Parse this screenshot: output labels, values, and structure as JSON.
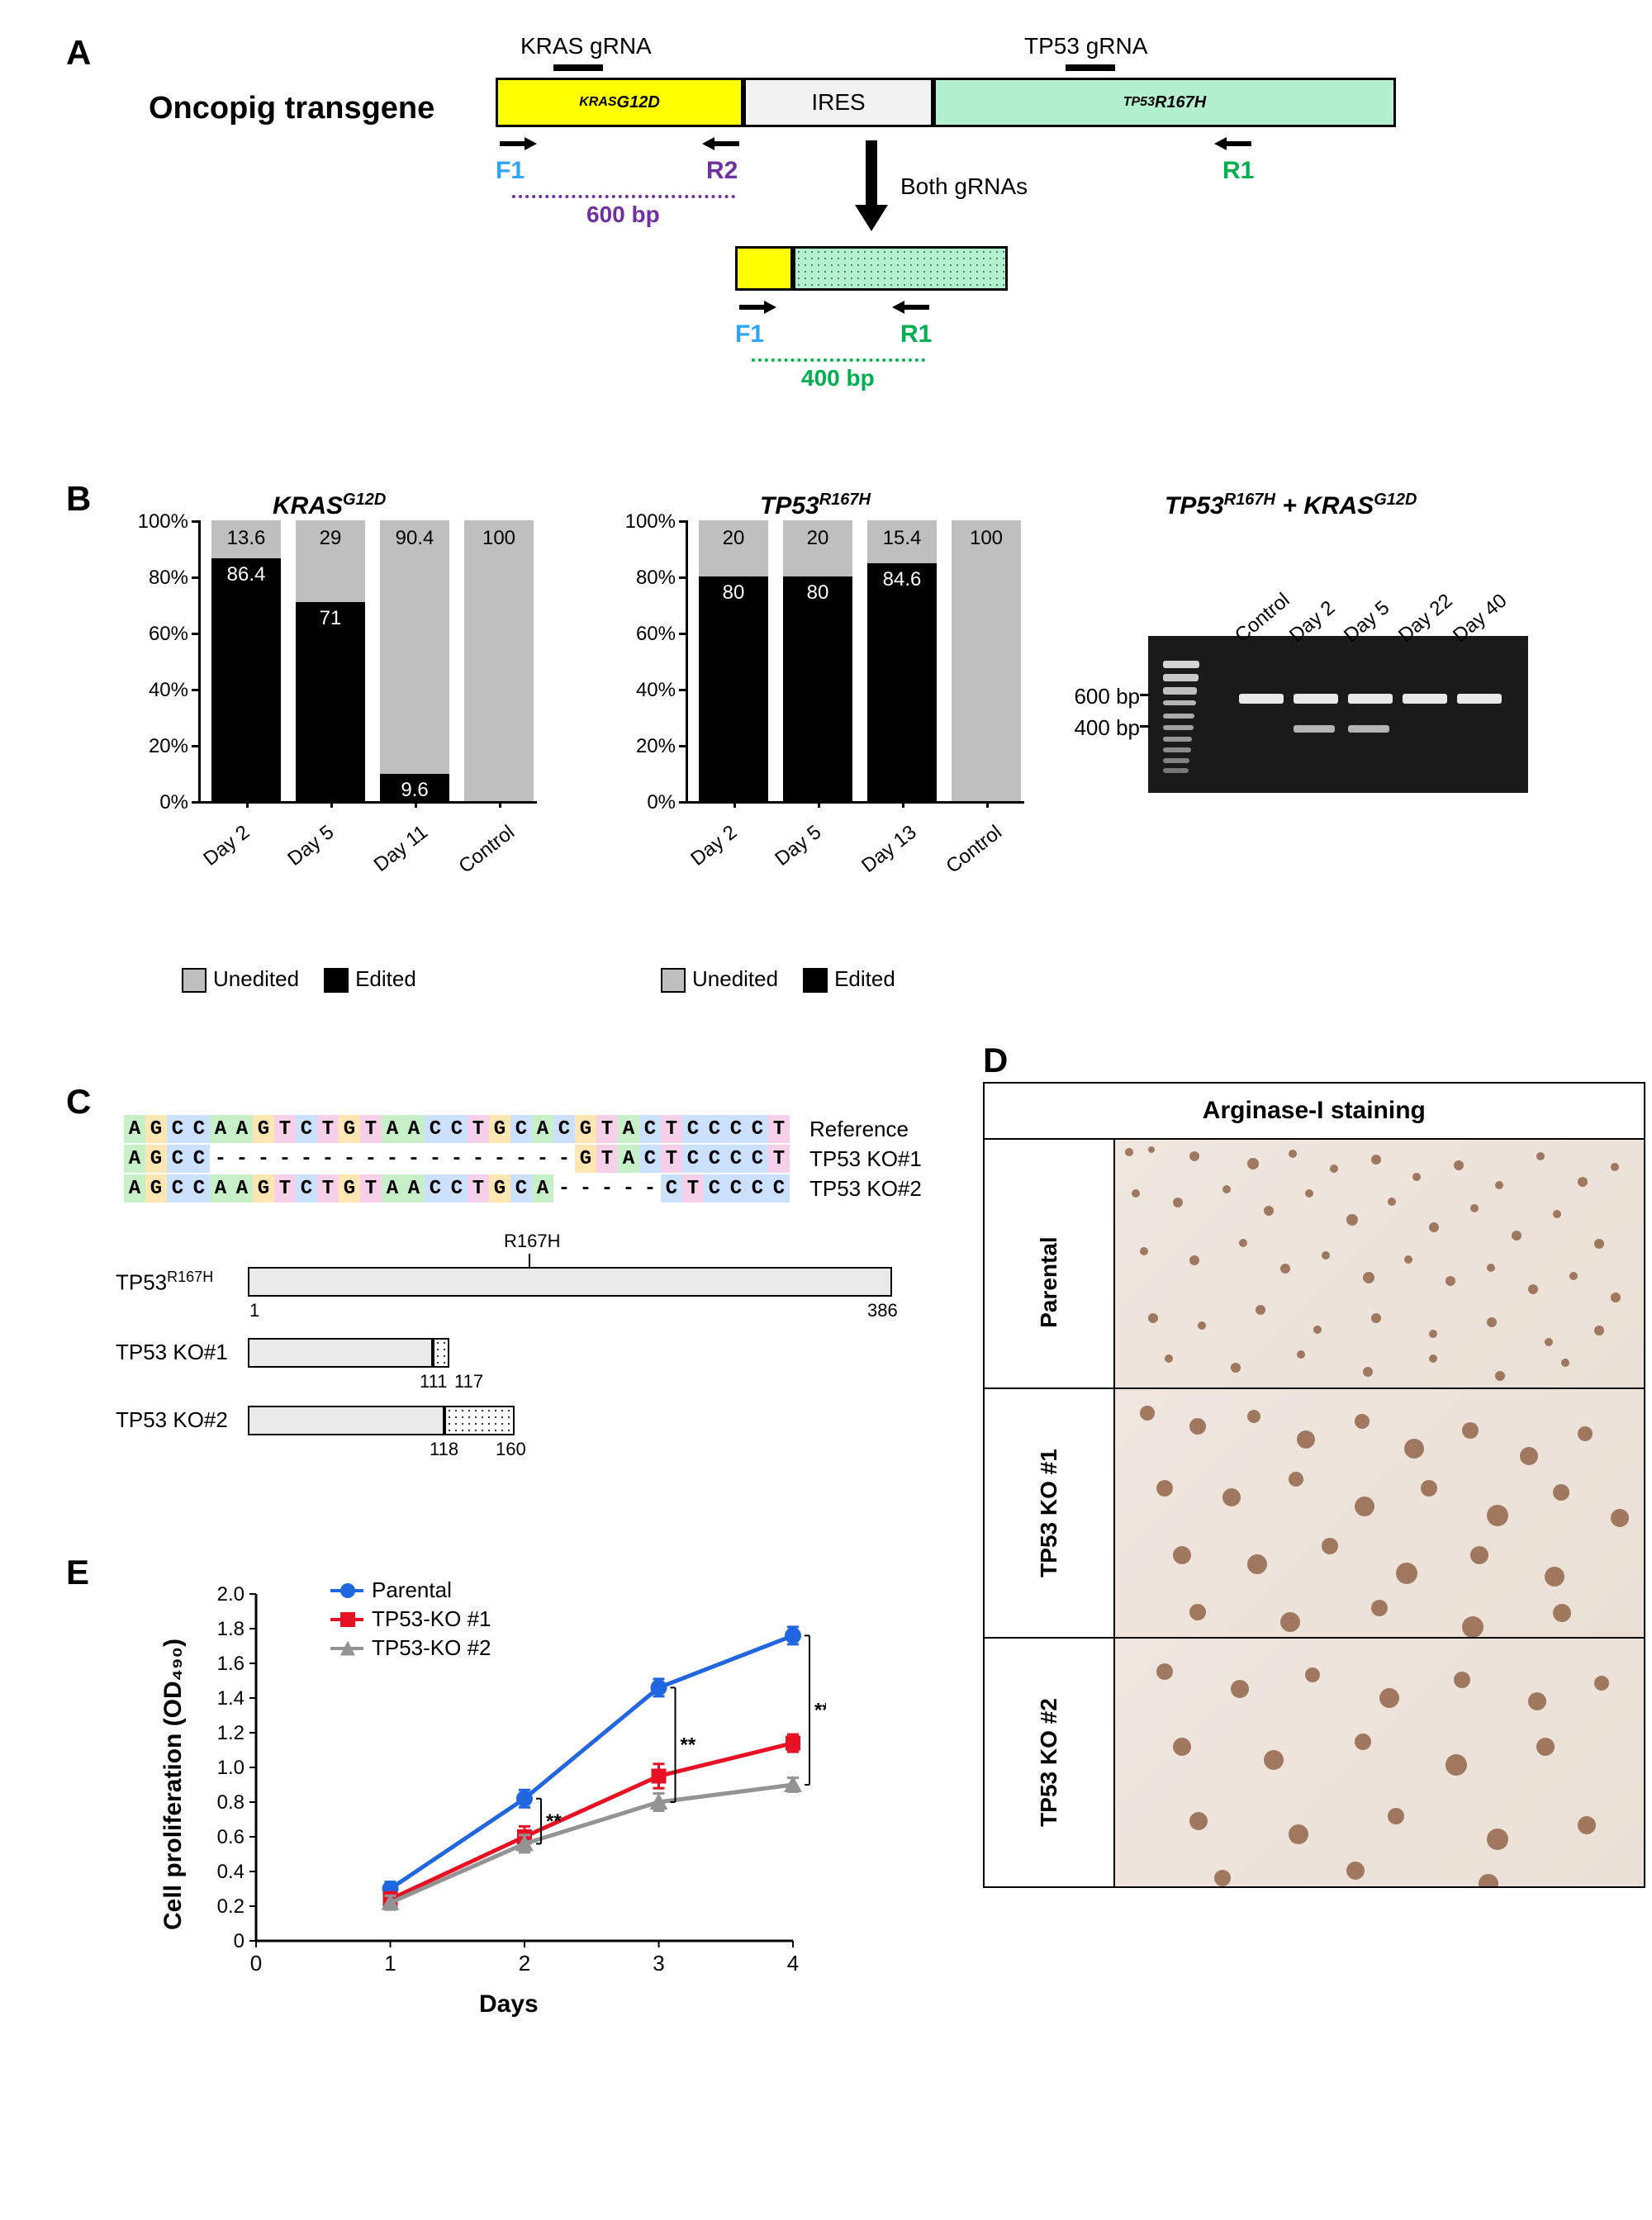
{
  "panels": {
    "A": "A",
    "B": "B",
    "C": "C",
    "D": "D",
    "E": "E"
  },
  "a": {
    "title": "Oncopig transgene",
    "kras_grna_label": "KRAS gRNA",
    "tp53_grna_label": "TP53 gRNA",
    "kras_box": "KRAS",
    "kras_sup": "G12D",
    "ires_box": "IRES",
    "tp53_box": "TP53",
    "tp53_sup": "R167H",
    "both_label": "Both gRNAs",
    "F1": "F1",
    "R1": "R1",
    "R2": "R2",
    "amp_600": "600 bp",
    "amp_400": "400 bp",
    "colors": {
      "kras_fill": "#ffff00",
      "ires_fill": "#f2f2f2",
      "tp53_fill": "#b3f0cf",
      "F1_color": "#2aa6ff",
      "R2_color": "#7030a0",
      "R1_color": "#00b050",
      "amp600_color": "#7030a0",
      "amp400_color": "#00b050"
    }
  },
  "b": {
    "kras_title": "KRAS",
    "kras_sup": "G12D",
    "tp53_title": "TP53",
    "tp53_sup": "R167H",
    "combo_title_l": "TP53",
    "combo_sup_l": "R167H",
    "combo_plus": " + ",
    "combo_title_r": "KRAS",
    "combo_sup_r": "G12D",
    "y_ticks": [
      "0%",
      "20%",
      "40%",
      "60%",
      "80%",
      "100%"
    ],
    "kras_x": [
      "Day 2",
      "Day 5",
      "Day 11",
      "Control"
    ],
    "kras_edited": [
      86.4,
      71,
      9.6,
      0
    ],
    "kras_unedited": [
      13.6,
      29,
      90.4,
      100
    ],
    "tp53_x": [
      "Day 2",
      "Day 5",
      "Day 13",
      "Control"
    ],
    "tp53_edited": [
      80,
      80,
      84.6,
      0
    ],
    "tp53_unedited": [
      20,
      20,
      15.4,
      100
    ],
    "legend_unedited": "Unedited",
    "legend_edited": "Edited",
    "colors": {
      "edited": "#000000",
      "unedited": "#bfbfbf"
    },
    "axis_fontsize": 24,
    "gel": {
      "lanes": [
        "Control",
        "Day 2",
        "Day 5",
        "Day 22",
        "Day 40"
      ],
      "bp600": "600 bp",
      "bp400": "400 bp",
      "ladder_bands_y": [
        30,
        46,
        62,
        78,
        94,
        108,
        122,
        135,
        148,
        160
      ],
      "bands_600_x": [
        110,
        176,
        242,
        308,
        374
      ],
      "band_400_x": [
        176,
        242
      ],
      "band_600_y": 70,
      "band_400_y": 108
    }
  },
  "c": {
    "ref_name": "Reference",
    "ko1_name": "TP53 KO#1",
    "ko2_name": "TP53 KO#2",
    "ref_seq": [
      "A",
      "G",
      "C",
      "C",
      "A",
      "A",
      "G",
      "T",
      "C",
      "T",
      "G",
      "T",
      "A",
      "A",
      "C",
      "C",
      "T",
      "G",
      "C",
      "A",
      "C",
      "G",
      "T",
      "A",
      "C",
      "T",
      "C",
      "C",
      "C",
      "C",
      "T"
    ],
    "ko1_seq": [
      "A",
      "G",
      "C",
      "C",
      "-",
      "-",
      "-",
      "-",
      "-",
      "-",
      "-",
      "-",
      "-",
      "-",
      "-",
      "-",
      "-",
      "-",
      "-",
      "-",
      "-",
      "G",
      "T",
      "A",
      "C",
      "T",
      "C",
      "C",
      "C",
      "C",
      "T"
    ],
    "ko2_seq": [
      "A",
      "G",
      "C",
      "C",
      "A",
      "A",
      "G",
      "T",
      "C",
      "T",
      "G",
      "T",
      "A",
      "A",
      "C",
      "C",
      "T",
      "G",
      "C",
      "A",
      "-",
      "-",
      "-",
      "-",
      "-",
      "C",
      "T",
      "C",
      "C",
      "C",
      "C"
    ],
    "nt_colors": {
      "A": "#c8f0c8",
      "G": "#ffe6b3",
      "C": "#cce0ff",
      "T": "#f5d0e8",
      "-": "#ffffff"
    },
    "prot_full": "TP53",
    "prot_full_sup": "R167H",
    "r167h_lab": "R167H",
    "ko1_prot": "TP53 KO#1",
    "ko2_prot": "TP53 KO#2",
    "full_len_start": "1",
    "full_len_end": "386",
    "ko1_stop": "111",
    "ko1_end": "117",
    "ko2_stop": "118",
    "ko2_end": "160"
  },
  "d": {
    "header": "Arginase-I staining",
    "rows": [
      "Parental",
      "TP53 KO #1",
      "TP53 KO #2"
    ],
    "parental_dots": [
      [
        12,
        10,
        5
      ],
      [
        40,
        8,
        4
      ],
      [
        90,
        14,
        6
      ],
      [
        160,
        22,
        7
      ],
      [
        210,
        12,
        5
      ],
      [
        260,
        30,
        5
      ],
      [
        310,
        18,
        6
      ],
      [
        360,
        40,
        5
      ],
      [
        410,
        25,
        6
      ],
      [
        460,
        50,
        5
      ],
      [
        510,
        15,
        5
      ],
      [
        560,
        45,
        6
      ],
      [
        600,
        28,
        5
      ],
      [
        20,
        60,
        5
      ],
      [
        70,
        70,
        6
      ],
      [
        130,
        55,
        5
      ],
      [
        180,
        80,
        6
      ],
      [
        230,
        60,
        5
      ],
      [
        280,
        90,
        7
      ],
      [
        330,
        70,
        5
      ],
      [
        380,
        100,
        6
      ],
      [
        430,
        78,
        5
      ],
      [
        480,
        110,
        6
      ],
      [
        530,
        85,
        5
      ],
      [
        580,
        120,
        6
      ],
      [
        30,
        130,
        5
      ],
      [
        90,
        140,
        6
      ],
      [
        150,
        120,
        5
      ],
      [
        200,
        150,
        6
      ],
      [
        250,
        135,
        5
      ],
      [
        300,
        160,
        7
      ],
      [
        350,
        140,
        5
      ],
      [
        400,
        165,
        6
      ],
      [
        450,
        150,
        5
      ],
      [
        500,
        175,
        6
      ],
      [
        550,
        160,
        5
      ],
      [
        600,
        185,
        6
      ],
      [
        40,
        210,
        6
      ],
      [
        100,
        220,
        5
      ],
      [
        170,
        200,
        6
      ],
      [
        240,
        225,
        5
      ],
      [
        310,
        210,
        6
      ],
      [
        380,
        230,
        5
      ],
      [
        450,
        215,
        6
      ],
      [
        520,
        240,
        5
      ],
      [
        580,
        225,
        6
      ],
      [
        60,
        260,
        5
      ],
      [
        140,
        270,
        6
      ],
      [
        220,
        255,
        5
      ],
      [
        300,
        275,
        6
      ],
      [
        380,
        260,
        5
      ],
      [
        460,
        280,
        6
      ],
      [
        540,
        265,
        5
      ]
    ],
    "ko1_dots": [
      [
        30,
        20,
        9
      ],
      [
        90,
        35,
        10
      ],
      [
        160,
        25,
        8
      ],
      [
        220,
        50,
        11
      ],
      [
        290,
        30,
        9
      ],
      [
        350,
        60,
        12
      ],
      [
        420,
        40,
        10
      ],
      [
        490,
        70,
        11
      ],
      [
        560,
        45,
        9
      ],
      [
        50,
        110,
        10
      ],
      [
        130,
        120,
        11
      ],
      [
        210,
        100,
        9
      ],
      [
        290,
        130,
        12
      ],
      [
        370,
        110,
        10
      ],
      [
        450,
        140,
        13
      ],
      [
        530,
        115,
        10
      ],
      [
        600,
        145,
        11
      ],
      [
        70,
        190,
        11
      ],
      [
        160,
        200,
        12
      ],
      [
        250,
        180,
        10
      ],
      [
        340,
        210,
        13
      ],
      [
        430,
        190,
        11
      ],
      [
        520,
        215,
        12
      ],
      [
        90,
        260,
        10
      ],
      [
        200,
        270,
        12
      ],
      [
        310,
        255,
        10
      ],
      [
        420,
        275,
        13
      ],
      [
        530,
        260,
        11
      ]
    ],
    "ko2_dots": [
      [
        50,
        30,
        10
      ],
      [
        140,
        50,
        11
      ],
      [
        230,
        35,
        9
      ],
      [
        320,
        60,
        12
      ],
      [
        410,
        40,
        10
      ],
      [
        500,
        65,
        11
      ],
      [
        580,
        45,
        9
      ],
      [
        70,
        120,
        11
      ],
      [
        180,
        135,
        12
      ],
      [
        290,
        115,
        10
      ],
      [
        400,
        140,
        13
      ],
      [
        510,
        120,
        11
      ],
      [
        90,
        210,
        11
      ],
      [
        210,
        225,
        12
      ],
      [
        330,
        205,
        10
      ],
      [
        450,
        230,
        13
      ],
      [
        560,
        215,
        11
      ],
      [
        120,
        280,
        10
      ],
      [
        280,
        270,
        11
      ],
      [
        440,
        285,
        12
      ]
    ],
    "dot_color": "#8b5a3c"
  },
  "e": {
    "ylabel": "Cell proliferation (OD₄₉₀)",
    "xlabel": "Days",
    "x_ticks": [
      "0",
      "1",
      "2",
      "3",
      "4"
    ],
    "y_ticks": [
      "0",
      "0.2",
      "0.4",
      "0.6",
      "0.8",
      "1.0",
      "1.2",
      "1.4",
      "1.6",
      "1.8",
      "2.0"
    ],
    "ylim": [
      0,
      2.0
    ],
    "xlim": [
      0,
      4
    ],
    "series": [
      {
        "name": "Parental",
        "color": "#2066e0",
        "marker": "circle",
        "x": [
          1,
          2,
          3,
          4
        ],
        "y": [
          0.3,
          0.82,
          1.46,
          1.76
        ],
        "err": [
          0.04,
          0.05,
          0.05,
          0.05
        ]
      },
      {
        "name": "TP53-KO #1",
        "color": "#e81123",
        "marker": "square",
        "x": [
          1,
          2,
          3,
          4
        ],
        "y": [
          0.24,
          0.6,
          0.95,
          1.14
        ],
        "err": [
          0.04,
          0.06,
          0.07,
          0.05
        ]
      },
      {
        "name": "TP53-KO #2",
        "color": "#939393",
        "marker": "triangle",
        "x": [
          1,
          2,
          3,
          4
        ],
        "y": [
          0.22,
          0.56,
          0.8,
          0.9
        ],
        "err": [
          0.04,
          0.05,
          0.05,
          0.04
        ]
      }
    ],
    "sig": "**",
    "title_fontsize": 30
  }
}
